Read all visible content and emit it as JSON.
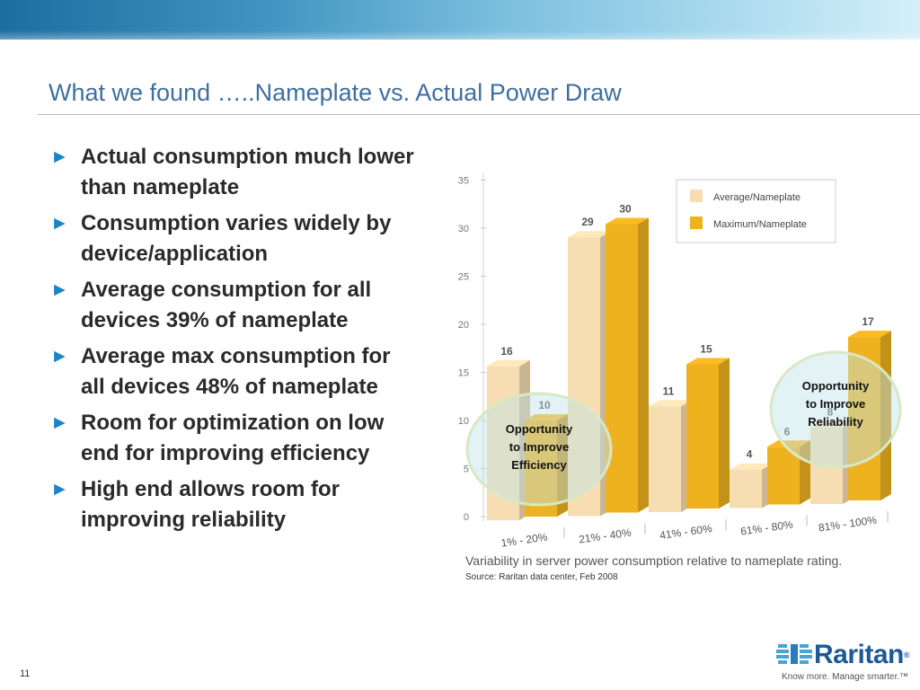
{
  "slide": {
    "title": "What we found …..Nameplate vs. Actual Power Draw",
    "page_number": "11"
  },
  "bullets": [
    {
      "marker": "►",
      "text": "Actual consumption much lower than nameplate"
    },
    {
      "marker": "►",
      "text": "Consumption varies widely by device/application"
    },
    {
      "marker": "►",
      "text": "Average consumption for all devices 39% of nameplate"
    },
    {
      "marker": "►",
      "text": "Average max consumption for all devices 48% of nameplate"
    },
    {
      "marker": "►",
      "text": "Room for optimization on low end for improving efficiency"
    },
    {
      "marker": "►",
      "text": "High end allows room for improving reliability"
    }
  ],
  "chart_data": {
    "type": "bar",
    "categories": [
      "1% - 20%",
      "21% - 40%",
      "41% - 60%",
      "61% - 80%",
      "81% - 100%"
    ],
    "series": [
      {
        "name": "Average/Nameplate",
        "values": [
          16,
          29,
          11,
          4,
          8
        ],
        "color": "#f6deb2"
      },
      {
        "name": "Maximum/Nameplate",
        "values": [
          10,
          30,
          15,
          6,
          17
        ],
        "color": "#efb21f"
      }
    ],
    "y_ticks": [
      0,
      5,
      10,
      15,
      20,
      25,
      30,
      35
    ],
    "ylim": [
      0,
      35
    ],
    "grid": false,
    "legend_position": "top-right",
    "annotations": [
      {
        "text": "Opportunity to Improve Efficiency",
        "near_category": "1% - 20%"
      },
      {
        "text": "Opportunity to Improve Reliability",
        "near_category": "81% - 100%"
      }
    ]
  },
  "caption": "Variability in server power consumption relative to nameplate rating.",
  "source": "Source: Raritan data center, Feb 2008",
  "logo": {
    "brand": "Raritan",
    "registered": "®",
    "tagline": "Know more. Manage smarter.™"
  },
  "colors": {
    "title": "#3f6f9e",
    "bullet_arrow": "#1a86c8",
    "highlight_circle": "#bfe3e9"
  }
}
